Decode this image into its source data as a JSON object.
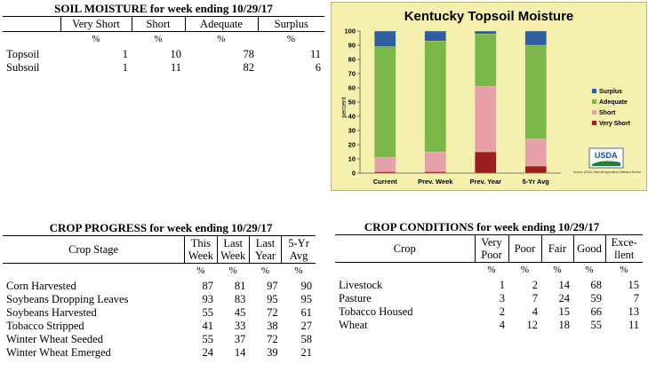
{
  "soil_moisture": {
    "title": "SOIL MOISTURE for week ending 10/29/17",
    "columns": [
      "Very Short",
      "Short",
      "Adequate",
      "Surplus"
    ],
    "unit": "%",
    "rows": [
      {
        "label": "Topsoil",
        "values": [
          "1",
          "10",
          "78",
          "11"
        ]
      },
      {
        "label": "Subsoil",
        "values": [
          "1",
          "11",
          "82",
          "6"
        ]
      }
    ]
  },
  "chart_data": {
    "type": "bar",
    "stacked": true,
    "title": "Kentucky Topsoil Moisture",
    "ylabel": "percent",
    "xlabel": "",
    "ylim": [
      0,
      100
    ],
    "yticks": [
      "0",
      "10",
      "20",
      "30",
      "40",
      "50",
      "60",
      "70",
      "80",
      "90",
      "100"
    ],
    "categories": [
      "Current",
      "Prev. Week",
      "Prev. Year",
      "5-Yr Avg"
    ],
    "series": [
      {
        "name": "Very Short",
        "color": "#9b1f1f",
        "values": [
          1,
          1,
          15,
          5
        ]
      },
      {
        "name": "Short",
        "color": "#e7a1a8",
        "values": [
          10,
          14,
          46,
          19
        ]
      },
      {
        "name": "Adequate",
        "color": "#7ab648",
        "values": [
          78,
          78,
          37,
          66
        ]
      },
      {
        "name": "Surplus",
        "color": "#2e5e9e",
        "values": [
          11,
          7,
          2,
          10
        ]
      }
    ],
    "legend_position": "right",
    "legend_order": [
      "Surplus",
      "Adequate",
      "Short",
      "Very Short"
    ],
    "grid": false,
    "logo": {
      "name": "USDA",
      "caption": "Source: USDA, National Agricultural Statistics Service"
    }
  },
  "crop_progress": {
    "title": "CROP PROGRESS for week ending 10/29/17",
    "stage_header": "Crop Stage",
    "columns": [
      {
        "line1": "This",
        "line2": "Week"
      },
      {
        "line1": "Last",
        "line2": "Week"
      },
      {
        "line1": "Last",
        "line2": "Year"
      },
      {
        "line1": "5-Yr",
        "line2": "Avg"
      }
    ],
    "unit": "%",
    "rows": [
      {
        "label": "Corn Harvested",
        "values": [
          "87",
          "81",
          "97",
          "90"
        ]
      },
      {
        "label": "Soybeans Dropping Leaves",
        "values": [
          "93",
          "83",
          "95",
          "95"
        ]
      },
      {
        "label": "Soybeans Harvested",
        "values": [
          "55",
          "45",
          "72",
          "61"
        ]
      },
      {
        "label": "Tobacco Stripped",
        "values": [
          "41",
          "33",
          "38",
          "27"
        ]
      },
      {
        "label": "Winter Wheat Seeded",
        "values": [
          "55",
          "37",
          "72",
          "58"
        ]
      },
      {
        "label": "Winter Wheat Emerged",
        "values": [
          "24",
          "14",
          "39",
          "21"
        ]
      }
    ]
  },
  "crop_conditions": {
    "title": "CROP CONDITIONS for week ending 10/29/17",
    "crop_header": "Crop",
    "columns": [
      {
        "line1": "Very",
        "line2": "Poor"
      },
      {
        "line1": "Poor",
        "line2": ""
      },
      {
        "line1": "Fair",
        "line2": ""
      },
      {
        "line1": "Good",
        "line2": ""
      },
      {
        "line1": "Exce-",
        "line2": "llent"
      }
    ],
    "unit": "%",
    "rows": [
      {
        "label": "Livestock",
        "values": [
          "1",
          "2",
          "14",
          "68",
          "15"
        ]
      },
      {
        "label": "Pasture",
        "values": [
          "3",
          "7",
          "24",
          "59",
          "7"
        ]
      },
      {
        "label": "Tobacco Housed",
        "values": [
          "2",
          "4",
          "15",
          "66",
          "13"
        ]
      },
      {
        "label": "Wheat",
        "values": [
          "4",
          "12",
          "18",
          "55",
          "11"
        ]
      }
    ]
  }
}
